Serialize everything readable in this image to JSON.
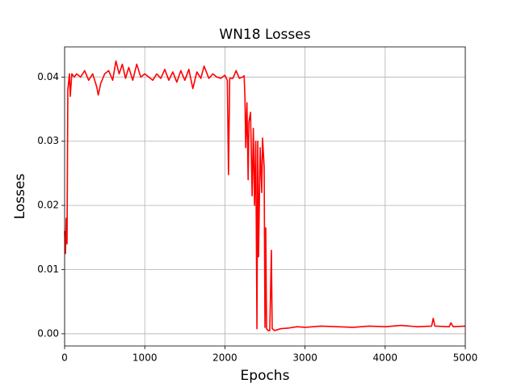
{
  "chart_data": {
    "type": "line",
    "title": "WN18 Losses",
    "x_label": "Epochs",
    "y_label": "Losses",
    "color": "#ff0000",
    "grid": true,
    "xlim": [
      0,
      5000
    ],
    "xticks": [
      0,
      1000,
      2000,
      3000,
      4000,
      5000
    ],
    "ylim": [
      -0.0019,
      0.0447
    ],
    "yticks": [
      {
        "value": 0,
        "label": "0.00"
      },
      0.01,
      0.02,
      0.03,
      0.04
    ],
    "x": [
      0,
      10,
      20,
      30,
      40,
      60,
      70,
      90,
      120,
      150,
      200,
      250,
      300,
      350,
      400,
      420,
      450,
      500,
      550,
      600,
      640,
      680,
      720,
      760,
      800,
      850,
      900,
      950,
      1000,
      1100,
      1150,
      1200,
      1250,
      1300,
      1350,
      1400,
      1450,
      1500,
      1550,
      1600,
      1650,
      1700,
      1740,
      1800,
      1850,
      1900,
      1950,
      2000,
      2030,
      2045,
      2060,
      2100,
      2140,
      2180,
      2220,
      2240,
      2250,
      2260,
      2275,
      2290,
      2300,
      2320,
      2340,
      2355,
      2370,
      2385,
      2400,
      2410,
      2420,
      2440,
      2460,
      2470,
      2490,
      2500,
      2510,
      2520,
      2540,
      2560,
      2580,
      2590,
      2620,
      2700,
      2800,
      2900,
      3000,
      3200,
      3400,
      3600,
      3800,
      4000,
      4200,
      4400,
      4580,
      4600,
      4620,
      4800,
      4820,
      4850,
      5000
    ],
    "values": [
      0.016,
      0.0125,
      0.018,
      0.014,
      0.038,
      0.0405,
      0.037,
      0.0405,
      0.04,
      0.0405,
      0.04,
      0.041,
      0.0395,
      0.0405,
      0.0385,
      0.0372,
      0.039,
      0.0405,
      0.041,
      0.0395,
      0.0425,
      0.0405,
      0.042,
      0.0398,
      0.0415,
      0.0395,
      0.042,
      0.04,
      0.0405,
      0.0395,
      0.0405,
      0.0398,
      0.0412,
      0.0395,
      0.0408,
      0.0392,
      0.041,
      0.0395,
      0.0412,
      0.0382,
      0.0408,
      0.0398,
      0.0417,
      0.0398,
      0.0405,
      0.04,
      0.0398,
      0.0403,
      0.0395,
      0.0248,
      0.0398,
      0.0398,
      0.041,
      0.0398,
      0.04,
      0.0402,
      0.037,
      0.029,
      0.036,
      0.024,
      0.033,
      0.0345,
      0.0215,
      0.032,
      0.02,
      0.03,
      0.0008,
      0.03,
      0.012,
      0.029,
      0.022,
      0.0305,
      0.026,
      0.001,
      0.0165,
      0.0008,
      0.0005,
      0.0005,
      0.013,
      0.0008,
      0.0005,
      0.0008,
      0.0009,
      0.0011,
      0.001,
      0.0012,
      0.0011,
      0.001,
      0.0012,
      0.0011,
      0.0013,
      0.0011,
      0.0012,
      0.0024,
      0.0012,
      0.0011,
      0.0017,
      0.0011,
      0.0012
    ]
  }
}
